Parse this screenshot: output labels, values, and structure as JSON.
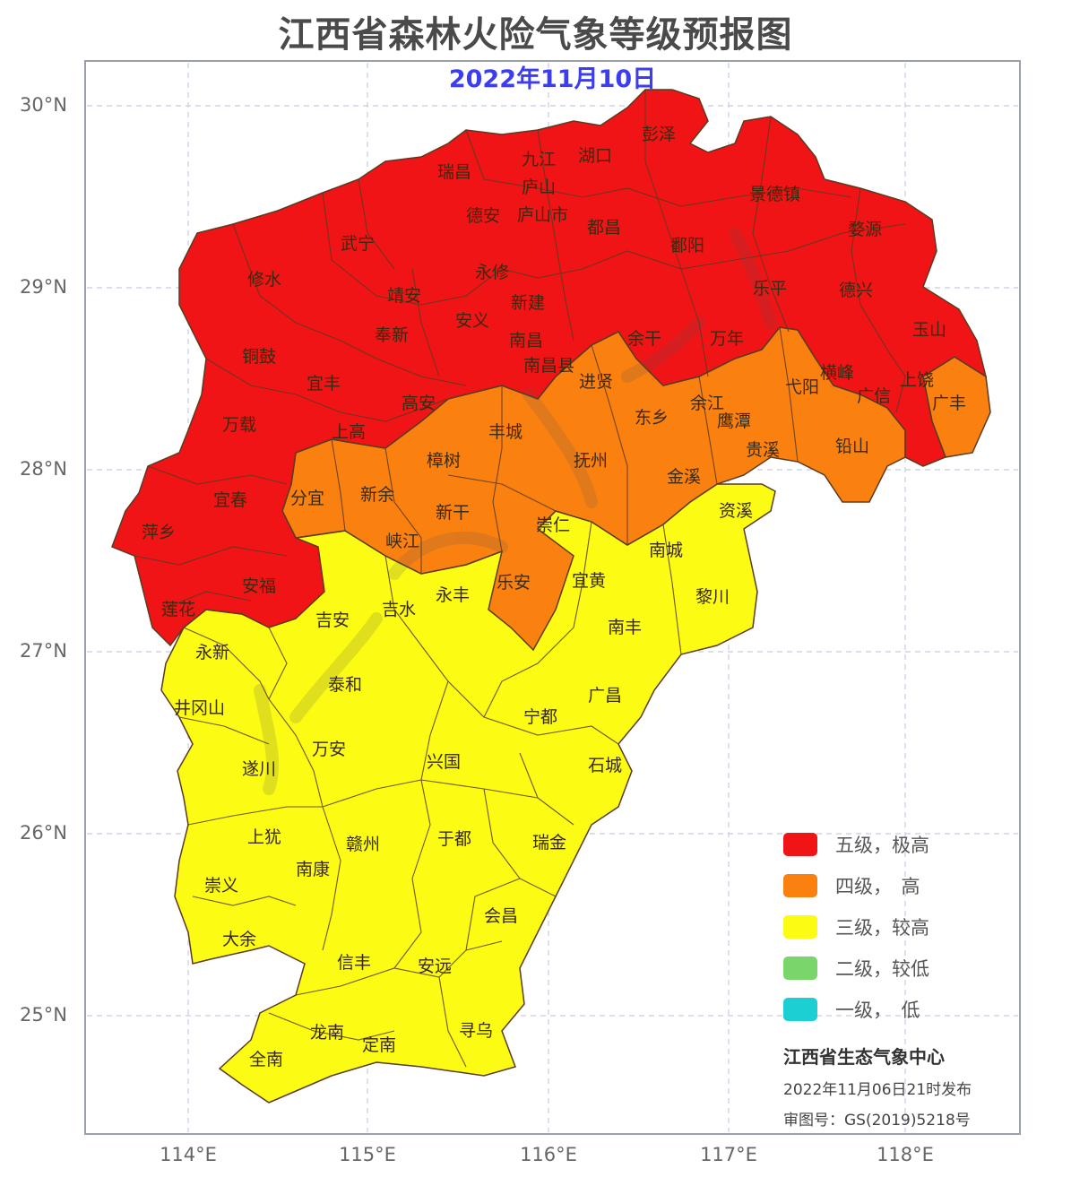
{
  "title": "江西省森林火险气象等级预报图",
  "date": "2022年11月10日",
  "axes": {
    "lat_labels": [
      "30°N",
      "29°N",
      "28°N",
      "27°N",
      "26°N",
      "25°N"
    ],
    "lon_labels": [
      "114°E",
      "115°E",
      "116°E",
      "117°E",
      "118°E"
    ]
  },
  "colors": {
    "level5": "#f01416",
    "level4": "#fa8010",
    "level3": "#fbfb14",
    "level2": "#7ad66a",
    "level1": "#1ccfd3",
    "border": "#5a3a20",
    "frame": "#9aa0a8",
    "grid": "#c8cae6"
  },
  "legend": [
    {
      "label": "五级，极高",
      "level": 5
    },
    {
      "label": "四级，　高",
      "level": 4
    },
    {
      "label": "三级，较高",
      "level": 3
    },
    {
      "label": "二级，较低",
      "level": 2
    },
    {
      "label": "一级，　低",
      "level": 1
    }
  ],
  "issuer": "江西省生态气象中心",
  "issued": "2022年11月06日21时发布",
  "review_no": "审图号：GS(2019)5218号",
  "cities_level5": [
    "彭泽",
    "九江",
    "湖口",
    "瑞昌",
    "庐山",
    "德安",
    "庐山市",
    "都昌",
    "景德镇",
    "婺源",
    "武宁",
    "修水",
    "永修",
    "鄱阳",
    "靖安",
    "新建",
    "乐平",
    "德兴",
    "安义",
    "奉新",
    "南昌",
    "余干",
    "万年",
    "玉山",
    "铜鼓",
    "南昌县",
    "宜丰",
    "横峰",
    "上饶",
    "高安",
    "万载",
    "上高",
    "广信",
    "宜春",
    "萍乡",
    "安福",
    "莲花"
  ],
  "cities_level4": [
    "进贤",
    "弋阳",
    "广丰",
    "余江",
    "东乡",
    "鹰潭",
    "丰城",
    "贵溪",
    "铅山",
    "樟树",
    "抚州",
    "分宜",
    "新余",
    "金溪",
    "新干",
    "峡江",
    "崇仁",
    "乐安"
  ],
  "cities_level3": [
    "资溪",
    "南城",
    "宜黄",
    "黎川",
    "永丰",
    "吉安",
    "吉水",
    "南丰",
    "永新",
    "泰和",
    "广昌",
    "宁都",
    "井冈山",
    "万安",
    "兴国",
    "石城",
    "遂川",
    "于都",
    "瑞金",
    "上犹",
    "赣州",
    "崇义",
    "南康",
    "会昌",
    "大余",
    "信丰",
    "安远",
    "寻乌",
    "龙南",
    "全南",
    "定南"
  ]
}
